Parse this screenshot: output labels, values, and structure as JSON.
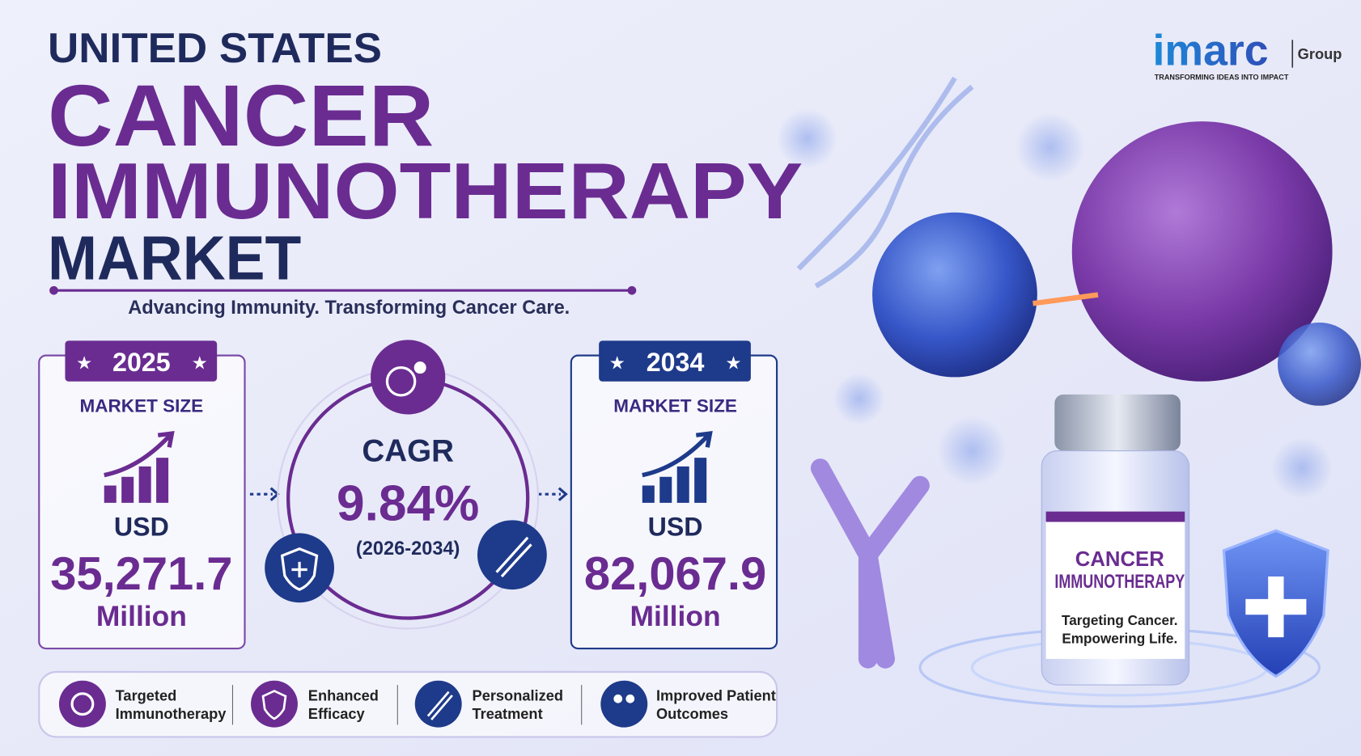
{
  "header": {
    "line1": "UNITED STATES",
    "line2": "CANCER",
    "line3": "IMMUNOTHERAPY",
    "line4": "MARKET",
    "tagline": "Advancing Immunity. Transforming Cancer Care."
  },
  "logo": {
    "brand": "imarc",
    "group": "Group",
    "slogan": "TRANSFORMING IDEAS INTO IMPACT"
  },
  "cards": [
    {
      "year": "2025",
      "label": "MARKET SIZE",
      "currency": "USD",
      "value": "35,271.7",
      "unit": "Million"
    },
    {
      "year": "2034",
      "label": "MARKET SIZE",
      "currency": "USD",
      "value": "82,067.9",
      "unit": "Million"
    }
  ],
  "cagr": {
    "label": "CAGR",
    "value": "9.84%",
    "period": "(2026-2034)"
  },
  "features": [
    {
      "lines": [
        "Targeted",
        "Immunotherapy"
      ]
    },
    {
      "lines": [
        "Enhanced",
        "Efficacy"
      ]
    },
    {
      "lines": [
        "Personalized",
        "Treatment"
      ]
    },
    {
      "lines": [
        "Improved Patient",
        "Outcomes"
      ]
    }
  ],
  "vial": {
    "title": [
      "CANCER",
      "IMMUNOTHERAPY"
    ],
    "subtitle": [
      "Targeting Cancer.",
      "Empowering Life."
    ]
  }
}
